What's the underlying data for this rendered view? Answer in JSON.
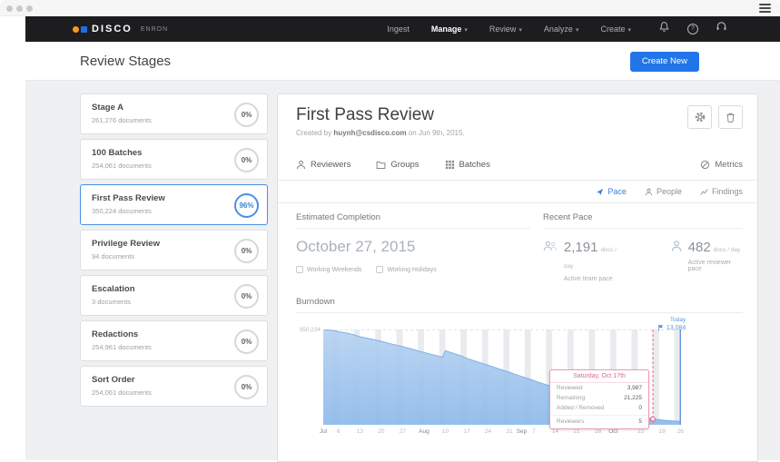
{
  "colors": {
    "accent_blue": "#2175e8",
    "selected_blue": "#4a90e2",
    "navbar_bg": "#1d1d1f",
    "tooltip_pink": "#e2699b",
    "area_fill": "#a5c8f0"
  },
  "navbar": {
    "brand": "DISCO",
    "matter": "ENRON",
    "items": [
      {
        "label": "Ingest",
        "dropdown": false,
        "active": false
      },
      {
        "label": "Manage",
        "dropdown": true,
        "active": true
      },
      {
        "label": "Review",
        "dropdown": true,
        "active": false
      },
      {
        "label": "Analyze",
        "dropdown": true,
        "active": false
      },
      {
        "label": "Create",
        "dropdown": true,
        "active": false
      }
    ]
  },
  "page": {
    "title": "Review Stages",
    "create_button": "Create New"
  },
  "stages": [
    {
      "name": "Stage A",
      "documents": "261,276 documents",
      "percent": "0%"
    },
    {
      "name": "100 Batches",
      "documents": "254,061 documents",
      "percent": "0%"
    },
    {
      "name": "First Pass Review",
      "documents": "350,224 documents",
      "percent": "96%"
    },
    {
      "name": "Privilege Review",
      "documents": "94 documents",
      "percent": "0%"
    },
    {
      "name": "Escalation",
      "documents": "3 documents",
      "percent": "0%"
    },
    {
      "name": "Redactions",
      "documents": "254,961 documents",
      "percent": "0%"
    },
    {
      "name": "Sort Order",
      "documents": "254,061 documents",
      "percent": "0%"
    }
  ],
  "panel": {
    "title": "First Pass Review",
    "created_prefix": "Created by ",
    "created_email": "huynh@csdisco.com",
    "created_suffix": " on Jun 9th, 2015.",
    "toolbar": [
      {
        "label": "Reviewers"
      },
      {
        "label": "Groups"
      },
      {
        "label": "Batches"
      }
    ],
    "metrics_label": "Metrics",
    "tabs": [
      {
        "label": "Pace",
        "active": true
      },
      {
        "label": "People",
        "active": false
      },
      {
        "label": "Findings",
        "active": false
      }
    ],
    "estimated_completion": {
      "heading": "Estimated Completion",
      "date": "October 27, 2015",
      "options": [
        "Working Weekends",
        "Working Holidays"
      ]
    },
    "recent_pace": {
      "heading": "Recent Pace",
      "team": {
        "value": "2,191",
        "unit": "docs / day",
        "caption": "Active team pace"
      },
      "reviewer": {
        "value": "482",
        "unit": "docs / day",
        "caption": "Active reviewer pace"
      }
    },
    "burndown_heading": "Burndown"
  },
  "chart_data": {
    "type": "area",
    "title": "Burndown",
    "y_max": 350224,
    "y_max_label": "350,224",
    "x_max_days": 119,
    "weekend_start_day": 3,
    "grid": "weekend-bands",
    "legend": "none",
    "series": [
      {
        "name": "Remaining documents",
        "points": [
          [
            0,
            350224
          ],
          [
            3,
            346500
          ],
          [
            5,
            341800
          ],
          [
            8,
            336200
          ],
          [
            10,
            331000
          ],
          [
            12,
            323500
          ],
          [
            15,
            317000
          ],
          [
            19,
            306500
          ],
          [
            22,
            297800
          ],
          [
            26,
            287500
          ],
          [
            29,
            278600
          ],
          [
            31,
            272000
          ],
          [
            34,
            263000
          ],
          [
            37,
            254500
          ],
          [
            39,
            248000
          ],
          [
            40,
            272000
          ],
          [
            42,
            265000
          ],
          [
            45,
            254000
          ],
          [
            47,
            244000
          ],
          [
            50,
            233000
          ],
          [
            54,
            219000
          ],
          [
            57,
            207000
          ],
          [
            61,
            193000
          ],
          [
            64,
            181000
          ],
          [
            68,
            166500
          ],
          [
            71,
            154500
          ],
          [
            75,
            140000
          ],
          [
            78,
            128000
          ],
          [
            82,
            112000
          ],
          [
            85,
            99000
          ],
          [
            89,
            83000
          ],
          [
            92,
            70500
          ],
          [
            96,
            55500
          ],
          [
            99,
            44500
          ],
          [
            103,
            33200
          ],
          [
            106,
            26200
          ],
          [
            108,
            21225
          ],
          [
            110,
            18600
          ],
          [
            112,
            16400
          ],
          [
            114,
            14800
          ],
          [
            116,
            13500
          ],
          [
            117,
            13084
          ]
        ]
      }
    ],
    "ticks": [
      {
        "d": 0,
        "label": "Jul",
        "month": true
      },
      {
        "d": 5,
        "label": "6",
        "month": false
      },
      {
        "d": 12,
        "label": "13",
        "month": false
      },
      {
        "d": 19,
        "label": "20",
        "month": false
      },
      {
        "d": 26,
        "label": "27",
        "month": false
      },
      {
        "d": 33,
        "label": "Aug",
        "month": true
      },
      {
        "d": 40,
        "label": "10",
        "month": false
      },
      {
        "d": 47,
        "label": "17",
        "month": false
      },
      {
        "d": 54,
        "label": "24",
        "month": false
      },
      {
        "d": 61,
        "label": "31",
        "month": false
      },
      {
        "d": 65,
        "label": "Sep",
        "month": true
      },
      {
        "d": 69,
        "label": "7",
        "month": false
      },
      {
        "d": 76,
        "label": "14",
        "month": false
      },
      {
        "d": 83,
        "label": "21",
        "month": false
      },
      {
        "d": 90,
        "label": "28",
        "month": false
      },
      {
        "d": 95,
        "label": "Oct",
        "month": true
      },
      {
        "d": 104,
        "label": "12",
        "month": false
      },
      {
        "d": 111,
        "label": "19",
        "month": false
      },
      {
        "d": 117,
        "label": "26",
        "month": false
      }
    ],
    "tooltip_day": 108,
    "tooltip_value": 21225,
    "tooltip": {
      "title": "Saturday, Oct 17th",
      "rows": [
        {
          "label": "Reviewed",
          "value": "3,987"
        },
        {
          "label": "Remaining",
          "value": "21,225"
        },
        {
          "label": "Added / Removed",
          "value": "0"
        },
        {
          "label": "Reviewers",
          "value": "5"
        }
      ]
    },
    "today_day": 117,
    "today_label": "Today",
    "today_value": "13,084"
  }
}
